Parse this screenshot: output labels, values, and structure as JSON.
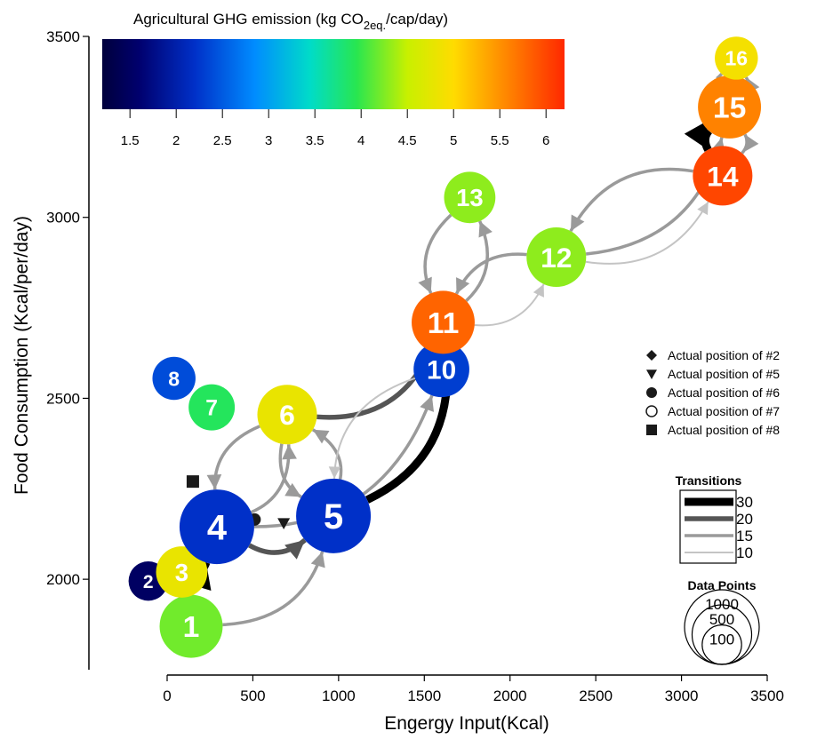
{
  "colorbar": {
    "title_main": "Agricultural GHG emission (kg CO",
    "title_sub": "2eq.",
    "title_tail": "/cap/day)",
    "min": 1.2,
    "max": 6.2,
    "ticks": [
      "1.5",
      "2",
      "2.5",
      "3",
      "3.5",
      "4",
      "4.5",
      "5",
      "5.5",
      "6"
    ]
  },
  "chart_data": {
    "type": "scatter",
    "xlabel": "Engergy Input(Kcal)",
    "ylabel": "Food Consumption (Kcal/per/day)",
    "xlim": [
      0,
      3500
    ],
    "ylim": [
      1750,
      3500
    ],
    "xticks": [
      "0",
      "500",
      "1000",
      "1500",
      "2000",
      "2500",
      "3000",
      "3500"
    ],
    "yticks": [
      "2000",
      "2500",
      "3000",
      "3500"
    ],
    "nodes": [
      {
        "id": "1",
        "x": 140,
        "y": 1870,
        "ghg": 4.2,
        "points": 600
      },
      {
        "id": "2",
        "x": -110,
        "y": 1995,
        "ghg": 1.5,
        "points": 100
      },
      {
        "id": "3",
        "x": 85,
        "y": 2020,
        "ghg": 4.8,
        "points": 300
      },
      {
        "id": "4",
        "x": 290,
        "y": 2145,
        "ghg": 2.2,
        "points": 1000
      },
      {
        "id": "5",
        "x": 970,
        "y": 2175,
        "ghg": 2.2,
        "points": 1000
      },
      {
        "id": "6",
        "x": 700,
        "y": 2455,
        "ghg": 4.8,
        "points": 500
      },
      {
        "id": "7",
        "x": 260,
        "y": 2475,
        "ghg": 3.9,
        "points": 200
      },
      {
        "id": "8",
        "x": 40,
        "y": 2555,
        "ghg": 2.4,
        "points": 150
      },
      {
        "id": "10",
        "x": 1600,
        "y": 2580,
        "ghg": 2.3,
        "points": 400
      },
      {
        "id": "11",
        "x": 1610,
        "y": 2710,
        "ghg": 5.8,
        "points": 600
      },
      {
        "id": "12",
        "x": 2270,
        "y": 2890,
        "ghg": 4.3,
        "points": 500
      },
      {
        "id": "13",
        "x": 1765,
        "y": 3055,
        "ghg": 4.3,
        "points": 300
      },
      {
        "id": "14",
        "x": 3240,
        "y": 3115,
        "ghg": 6.0,
        "points": 500
      },
      {
        "id": "15",
        "x": 3280,
        "y": 3305,
        "ghg": 5.6,
        "points": 600
      },
      {
        "id": "16",
        "x": 3320,
        "y": 3440,
        "ghg": 4.9,
        "points": 150
      }
    ],
    "transitions": [
      {
        "from": "1",
        "to": "2",
        "count": 30
      },
      {
        "from": "2",
        "to": "4",
        "count": 30
      },
      {
        "from": "4",
        "to": "5",
        "count": 20
      },
      {
        "from": "4",
        "to": "1",
        "count": 15
      },
      {
        "from": "1",
        "to": "5",
        "count": 15
      },
      {
        "from": "4",
        "to": "6",
        "count": 15
      },
      {
        "from": "6",
        "to": "4",
        "count": 15
      },
      {
        "from": "6",
        "to": "5",
        "count": 15
      },
      {
        "from": "5",
        "to": "6",
        "count": 15
      },
      {
        "from": "5",
        "to": "11",
        "count": 30
      },
      {
        "from": "6",
        "to": "11",
        "count": 20
      },
      {
        "from": "4",
        "to": "10",
        "count": 15
      },
      {
        "from": "10",
        "to": "5",
        "count": 10
      },
      {
        "from": "10",
        "to": "11",
        "count": 15
      },
      {
        "from": "11",
        "to": "13",
        "count": 15
      },
      {
        "from": "13",
        "to": "11",
        "count": 15
      },
      {
        "from": "11",
        "to": "12",
        "count": 10
      },
      {
        "from": "12",
        "to": "11",
        "count": 15
      },
      {
        "from": "12",
        "to": "14",
        "count": 10
      },
      {
        "from": "14",
        "to": "12",
        "count": 15
      },
      {
        "from": "14",
        "to": "15",
        "count": 15
      },
      {
        "from": "15",
        "to": "14",
        "count": 30
      },
      {
        "from": "15",
        "to": "16",
        "count": 15
      },
      {
        "from": "16",
        "to": "15",
        "count": 15
      },
      {
        "from": "12",
        "to": "15",
        "count": 15
      }
    ],
    "actual_positions": [
      {
        "label": "Actual position of #2",
        "marker": "diamond",
        "x": 85,
        "y": 1985
      },
      {
        "label": "Actual position of #5",
        "marker": "triangle-down",
        "x": 680,
        "y": 2155
      },
      {
        "label": "Actual position of #6",
        "marker": "circle-filled",
        "x": 510,
        "y": 2165
      },
      {
        "label": "Actual position of #7",
        "marker": "circle-open",
        "x": 310,
        "y": 2210
      },
      {
        "label": "Actual position of #8",
        "marker": "square",
        "x": 150,
        "y": 2270
      }
    ],
    "transitions_legend": {
      "title": "Transitions",
      "entries": [
        {
          "label": "30",
          "count": 30,
          "color": "#000000"
        },
        {
          "label": "20",
          "count": 20,
          "color": "#555555"
        },
        {
          "label": "15",
          "count": 15,
          "color": "#9a9a9a"
        },
        {
          "label": "10",
          "count": 10,
          "color": "#c4c4c4"
        }
      ]
    },
    "points_legend": {
      "title": "Data Points",
      "entries": [
        {
          "label": "1000",
          "points": 1000
        },
        {
          "label": "500",
          "points": 500
        },
        {
          "label": "100",
          "points": 100
        }
      ]
    }
  }
}
